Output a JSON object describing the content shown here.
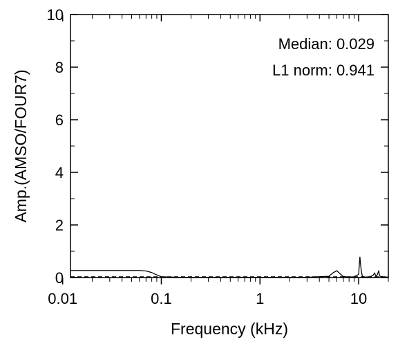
{
  "chart_data": {
    "type": "line",
    "xlabel": "Frequency (kHz)",
    "ylabel": "Amp.(AMSO/FOUR7)",
    "x_scale": "log",
    "xlim": [
      0.012,
      20
    ],
    "ylim": [
      0,
      10
    ],
    "x_ticks": [
      0.01,
      0.1,
      1,
      10
    ],
    "x_tick_labels": [
      "0.01",
      "0.1",
      "1",
      "10"
    ],
    "y_ticks": [
      0,
      2,
      4,
      6,
      8,
      10
    ],
    "y_tick_labels": [
      "0",
      "2",
      "4",
      "6",
      "8",
      "10"
    ],
    "grid": false,
    "annotations": [
      {
        "text": "Median: 0.029"
      },
      {
        "text": "L1 norm: 0.941"
      }
    ],
    "series": [
      {
        "style": "solid",
        "x": [
          0.012,
          0.02,
          0.04,
          0.06,
          0.07,
          0.08,
          0.09,
          0.1,
          0.15,
          0.5,
          1,
          3,
          5,
          5.5,
          6.0,
          6.5,
          7,
          8,
          9,
          10,
          10.3,
          10.6,
          10.9,
          11.3,
          12,
          13,
          14,
          14.5,
          15,
          15.5,
          16,
          16.3,
          17,
          18,
          20
        ],
        "y": [
          0.27,
          0.27,
          0.27,
          0.27,
          0.25,
          0.19,
          0.1,
          0.03,
          0.01,
          0.01,
          0.01,
          0.01,
          0.05,
          0.18,
          0.26,
          0.14,
          0.04,
          0.02,
          0.03,
          0.12,
          0.78,
          0.3,
          0.06,
          0.02,
          0.02,
          0.03,
          0.08,
          0.18,
          0.05,
          0.12,
          0.26,
          0.06,
          0.04,
          0.02,
          0.02
        ]
      },
      {
        "style": "dashed",
        "x": [
          0.012,
          20
        ],
        "y": [
          0.029,
          0.029
        ]
      }
    ]
  }
}
